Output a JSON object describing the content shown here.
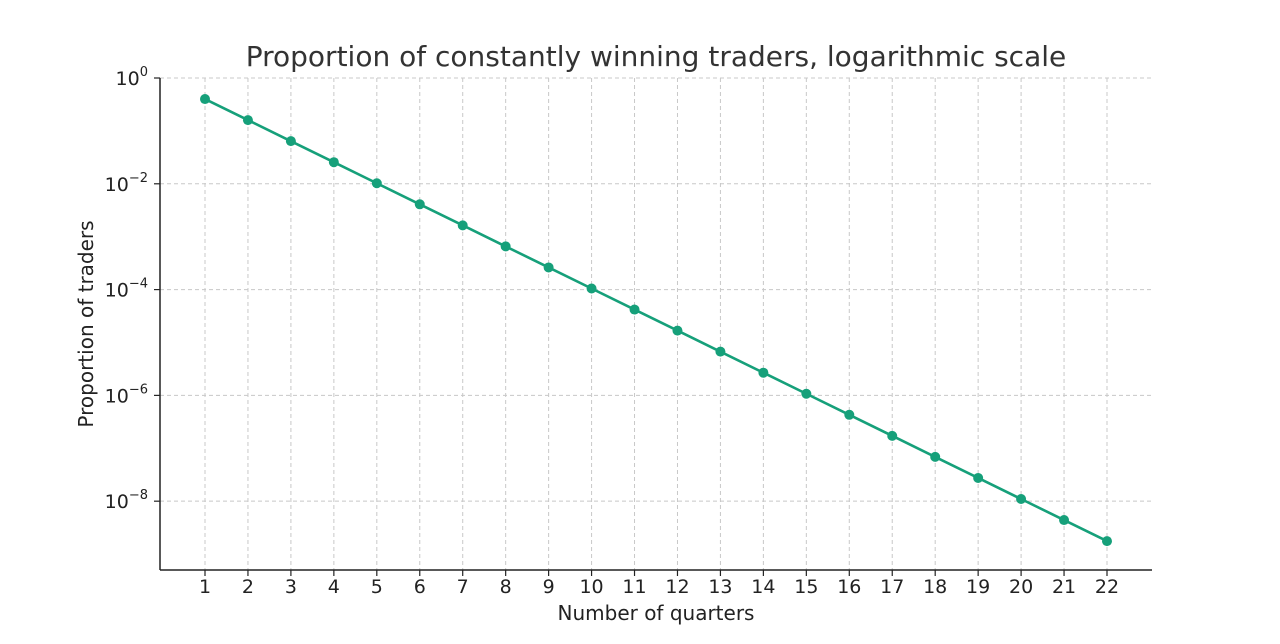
{
  "chart_data": {
    "type": "line",
    "title": "Proportion of constantly winning traders, logarithmic scale",
    "xlabel": "Number of quarters",
    "ylabel": "Proportion of traders",
    "x": [
      1,
      2,
      3,
      4,
      5,
      6,
      7,
      8,
      9,
      10,
      11,
      12,
      13,
      14,
      15,
      16,
      17,
      18,
      19,
      20,
      21,
      22
    ],
    "x_tick_labels": [
      "1",
      "2",
      "3",
      "4",
      "5",
      "6",
      "7",
      "8",
      "9",
      "10",
      "11",
      "12",
      "13",
      "14",
      "15",
      "16",
      "17",
      "18",
      "19",
      "20",
      "21",
      "22"
    ],
    "y_scale": "log",
    "ylim": [
      5e-10,
      1
    ],
    "y_ticks": [
      {
        "base": "10",
        "exp": "0",
        "value": 1
      },
      {
        "base": "10",
        "exp": "−2",
        "value": 0.01
      },
      {
        "base": "10",
        "exp": "−4",
        "value": 0.0001
      },
      {
        "base": "10",
        "exp": "−6",
        "value": 1e-06
      },
      {
        "base": "10",
        "exp": "−8",
        "value": 1e-08
      }
    ],
    "grid": true,
    "series": [
      {
        "color": "#16a07a",
        "marker": "circle",
        "values": [
          0.4,
          0.16,
          0.064,
          0.0256,
          0.01024,
          0.004096,
          0.0016384,
          0.00065536,
          0.000262144,
          0.000104858,
          4.1943e-05,
          1.67772e-05,
          6.71089e-06,
          2.68435e-06,
          1.07374e-06,
          4.29497e-07,
          1.71799e-07,
          6.87195e-08,
          2.74878e-08,
          1.09951e-08,
          4.39805e-09,
          1.75922e-09
        ]
      }
    ]
  }
}
